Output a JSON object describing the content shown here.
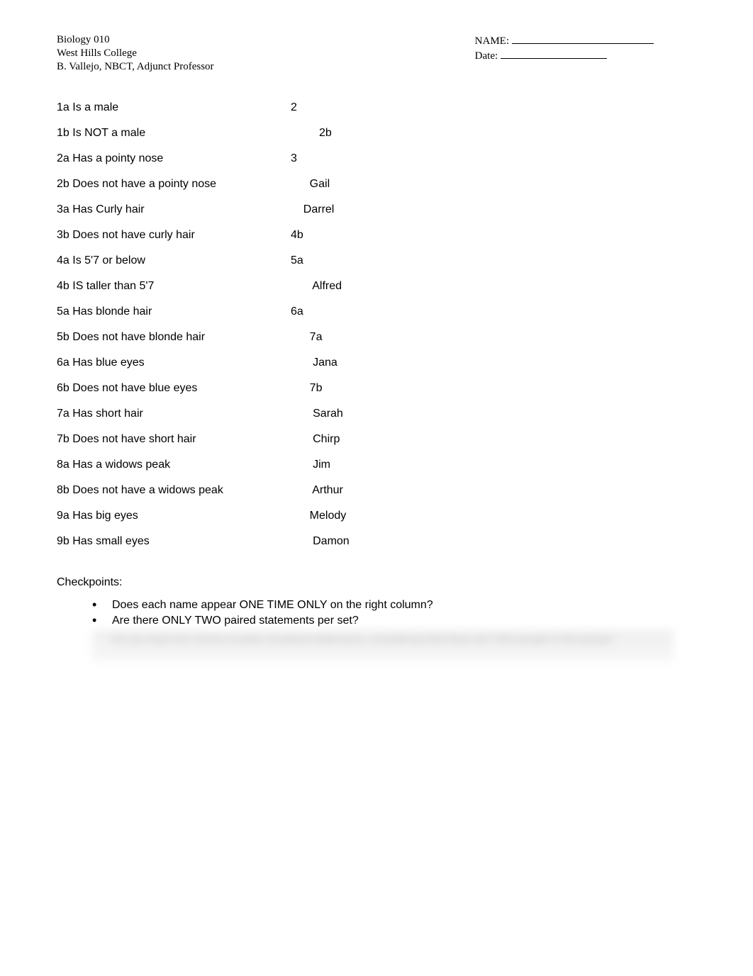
{
  "header": {
    "course": "Biology 010",
    "college": "West Hills College",
    "professor": "B. Vallejo, NBCT, Adjunct Professor",
    "name_label": "NAME:",
    "date_label": "Date:"
  },
  "key": {
    "rows": [
      {
        "statement": "1a  Is a male",
        "result": "2"
      },
      {
        "statement": "1b  Is NOT a male",
        "result": "         2b"
      },
      {
        "statement": "2a  Has a pointy nose",
        "result": "3"
      },
      {
        "statement": "2b  Does not have a pointy nose",
        "result": "      Gail"
      },
      {
        "statement": "3a  Has Curly hair",
        "result": "    Darrel"
      },
      {
        "statement": "3b  Does not have curly hair",
        "result": "4b"
      },
      {
        "statement": "4a Is 5'7 or below",
        "result": "5a"
      },
      {
        "statement": "4b IS taller than 5'7",
        "result": "       Alfred"
      },
      {
        "statement": "5a   Has blonde hair",
        "result": "6a"
      },
      {
        "statement": "5b  Does not have blonde hair",
        "result": "      7a"
      },
      {
        "statement": "6a Has blue eyes",
        "result": "       Jana"
      },
      {
        "statement": "6b  Does not have blue eyes",
        "result": "      7b"
      },
      {
        "statement": "7a  Has short hair",
        "result": "       Sarah"
      },
      {
        "statement": "7b  Does not have short hair",
        "result": "       Chirp"
      },
      {
        "statement": "8a  Has a widows peak",
        "result": "       Jim"
      },
      {
        "statement": "8b  Does not have a widows peak",
        "result": "       Arthur"
      },
      {
        "statement": "9a  Has big eyes",
        "result": "      Melody"
      },
      {
        "statement": "9b  Has small eyes",
        "result": "       Damon"
      }
    ]
  },
  "checkpoints": {
    "title": "Checkpoints:",
    "items": [
      "Does each name appear ONE TIME ONLY on the right column?",
      "Are there ONLY TWO paired statements per set?"
    ],
    "blurred_text": "Do you have the correct number of paired statements, considering that there are TEN people in the group?"
  }
}
